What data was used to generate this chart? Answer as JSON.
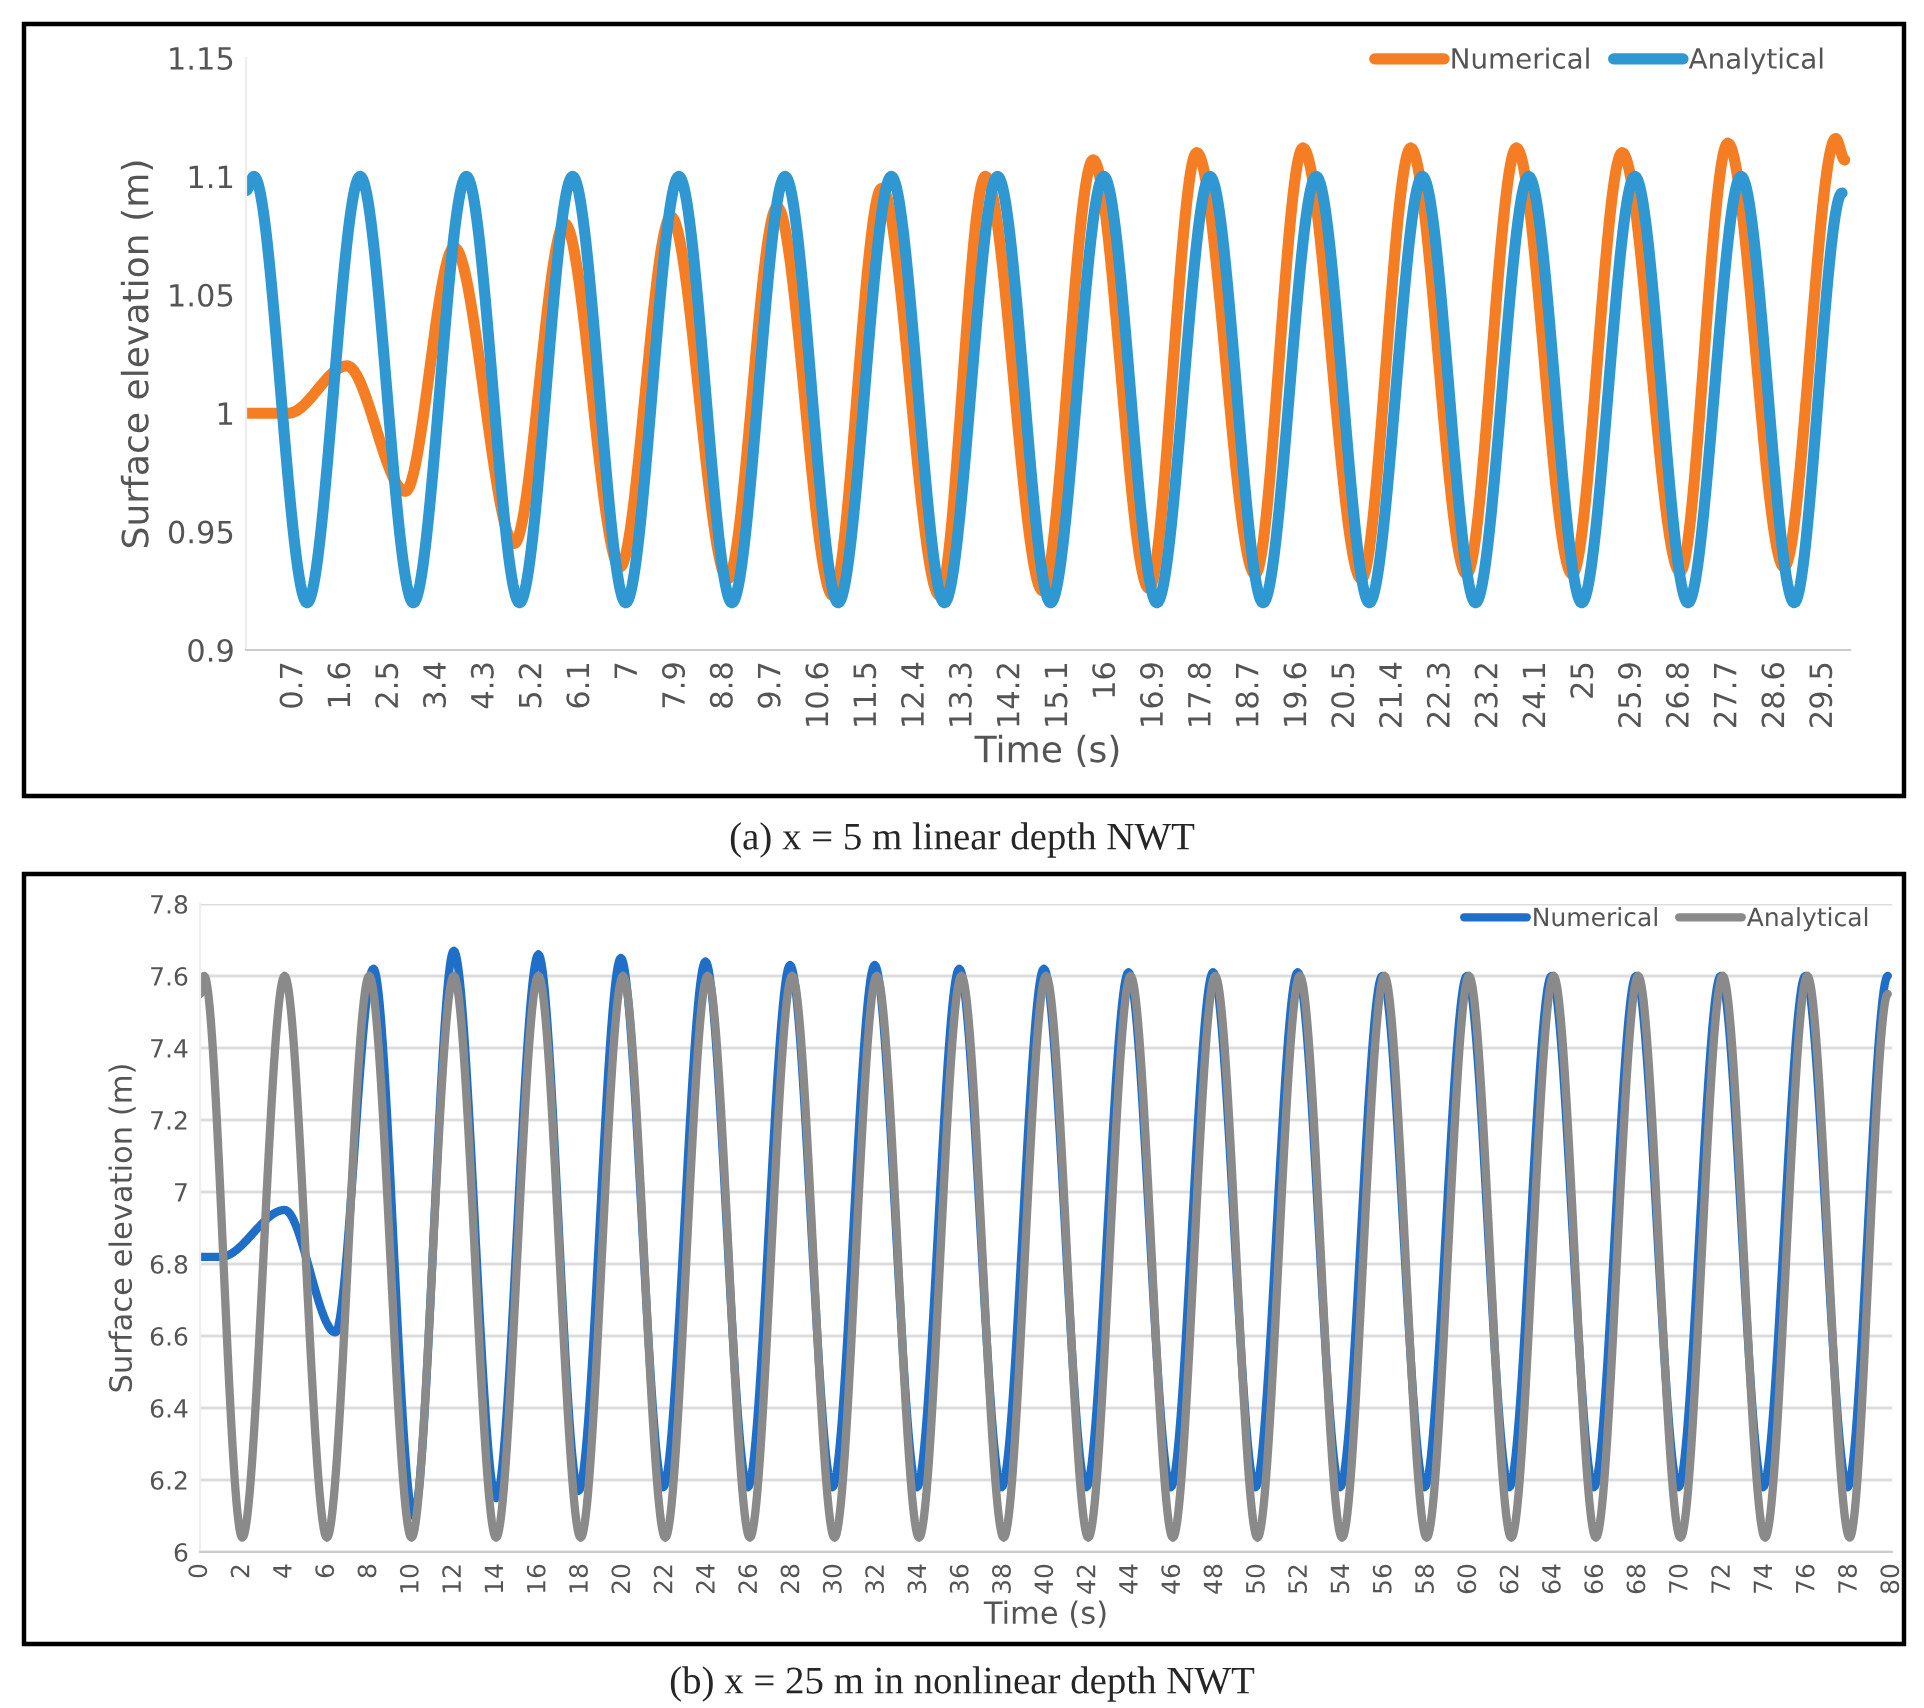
{
  "chart_data": [
    {
      "type": "line",
      "xlabel": "Time (s)",
      "ylabel": "Surface elevation (m)",
      "annotations": [
        "(a) x = 5 m linear depth NWT"
      ],
      "xlim": [
        -0.2,
        30.0
      ],
      "ylim": [
        0.9,
        1.15
      ],
      "xticks": [
        0.7,
        1.6,
        2.5,
        3.4,
        4.3,
        5.2,
        6.1,
        7,
        7.9,
        8.8,
        9.7,
        10.6,
        11.5,
        12.4,
        13.3,
        14.2,
        15.1,
        16,
        16.9,
        17.8,
        18.7,
        19.6,
        20.5,
        21.4,
        22.3,
        23.2,
        24.1,
        25,
        25.9,
        26.8,
        27.7,
        28.6,
        29.5
      ],
      "yticks": [
        0.9,
        0.95,
        1,
        1.05,
        1.1,
        1.15
      ],
      "legend": "top right",
      "series": [
        {
          "name": "Numerical",
          "color": "#f57e25",
          "x": [
            -0.2,
            0.6,
            1.7,
            2.8,
            3.72,
            4.85,
            5.8,
            6.84,
            7.8,
            8.87,
            9.8,
            10.85,
            11.77,
            12.86,
            13.72,
            14.8,
            15.75,
            16.8,
            17.7,
            18.8,
            19.7,
            20.8,
            21.73,
            22.78,
            23.72,
            24.77,
            25.71,
            26.8,
            27.7,
            28.76,
            29.73,
            29.9
          ],
          "values": [
            1.0,
            1.0,
            1.02,
            0.967,
            1.07,
            0.945,
            1.08,
            0.935,
            1.083,
            0.93,
            1.087,
            0.923,
            1.095,
            0.923,
            1.1,
            0.925,
            1.107,
            0.926,
            1.11,
            0.932,
            1.112,
            0.93,
            1.112,
            0.932,
            1.112,
            0.932,
            1.11,
            0.933,
            1.114,
            0.935,
            1.116,
            1.107
          ]
        },
        {
          "name": "Analytical",
          "color": "#2f98d3",
          "x": [
            -0.2,
            -0.05,
            0.95,
            1.95,
            2.95,
            3.95,
            4.95,
            5.95,
            6.95,
            7.95,
            8.95,
            9.95,
            10.95,
            11.95,
            12.95,
            13.95,
            14.95,
            15.95,
            16.95,
            17.95,
            18.95,
            19.95,
            20.95,
            21.95,
            22.95,
            23.95,
            24.95,
            25.95,
            26.95,
            27.95,
            28.95,
            29.85
          ],
          "values": [
            1.094,
            1.1,
            0.92,
            1.1,
            0.92,
            1.1,
            0.92,
            1.1,
            0.92,
            1.1,
            0.92,
            1.1,
            0.92,
            1.1,
            0.92,
            1.1,
            0.92,
            1.1,
            0.92,
            1.1,
            0.92,
            1.1,
            0.92,
            1.1,
            0.92,
            1.1,
            0.92,
            1.1,
            0.92,
            1.1,
            0.92,
            1.093
          ]
        }
      ]
    },
    {
      "type": "line",
      "xlabel": "Time (s)",
      "ylabel": "Surface elevation (m)",
      "annotations": [
        "(b) x = 25 m in nonlinear depth NWT"
      ],
      "xlim": [
        0,
        80
      ],
      "ylim": [
        6,
        7.8
      ],
      "xticks": [
        0,
        2,
        4,
        6,
        8,
        10,
        12,
        14,
        16,
        18,
        20,
        22,
        24,
        26,
        28,
        30,
        32,
        34,
        36,
        38,
        40,
        42,
        44,
        46,
        48,
        50,
        52,
        54,
        56,
        58,
        60,
        62,
        64,
        66,
        68,
        70,
        72,
        74,
        76,
        78,
        80
      ],
      "yticks": [
        6,
        6.2,
        6.4,
        6.6,
        6.8,
        7,
        7.2,
        7.4,
        7.6,
        7.8
      ],
      "grid": "y",
      "legend": "top right",
      "series": [
        {
          "name": "Numerical",
          "color": "#1f6fc8",
          "x": [
            0,
            1,
            4,
            6.4,
            8.2,
            10.1,
            12,
            14,
            16,
            17.9,
            19.9,
            21.9,
            23.9,
            25.9,
            27.9,
            29.9,
            31.9,
            33.9,
            35.9,
            37.9,
            39.9,
            41.9,
            43.9,
            45.9,
            47.9,
            49.9,
            51.9,
            53.9,
            55.9,
            57.9,
            59.9,
            61.9,
            63.9,
            65.9,
            67.9,
            69.9,
            71.9,
            73.9,
            75.9,
            77.9,
            79.8
          ],
          "values": [
            6.82,
            6.82,
            6.95,
            6.61,
            7.62,
            6.1,
            7.67,
            6.15,
            7.66,
            6.17,
            7.65,
            6.18,
            7.64,
            6.18,
            7.63,
            6.18,
            7.63,
            6.18,
            7.62,
            6.18,
            7.62,
            6.18,
            7.61,
            6.18,
            7.61,
            6.18,
            7.61,
            6.18,
            7.6,
            6.18,
            7.6,
            6.18,
            7.6,
            6.18,
            7.6,
            6.18,
            7.6,
            6.18,
            7.6,
            6.18,
            7.6
          ]
        },
        {
          "name": "Analytical",
          "color": "#8a8a8a",
          "x": [
            0,
            0.2,
            2,
            4,
            6,
            8,
            10,
            12,
            14,
            16,
            18,
            20,
            22,
            24,
            26,
            28,
            30,
            32,
            34,
            36,
            38,
            40,
            42,
            44,
            46,
            48,
            50,
            52,
            54,
            56,
            58,
            60,
            62,
            64,
            66,
            68,
            70,
            72,
            74,
            76,
            78,
            79.8
          ],
          "values": [
            7.55,
            7.6,
            6.04,
            7.6,
            6.04,
            7.6,
            6.04,
            7.6,
            6.04,
            7.6,
            6.04,
            7.6,
            6.04,
            7.6,
            6.04,
            7.6,
            6.04,
            7.6,
            6.04,
            7.6,
            6.04,
            7.6,
            6.04,
            7.6,
            6.04,
            7.6,
            6.04,
            7.6,
            6.04,
            7.6,
            6.04,
            7.6,
            6.04,
            7.6,
            6.04,
            7.6,
            6.04,
            7.6,
            6.04,
            7.6,
            6.04,
            7.55
          ]
        }
      ]
    }
  ]
}
